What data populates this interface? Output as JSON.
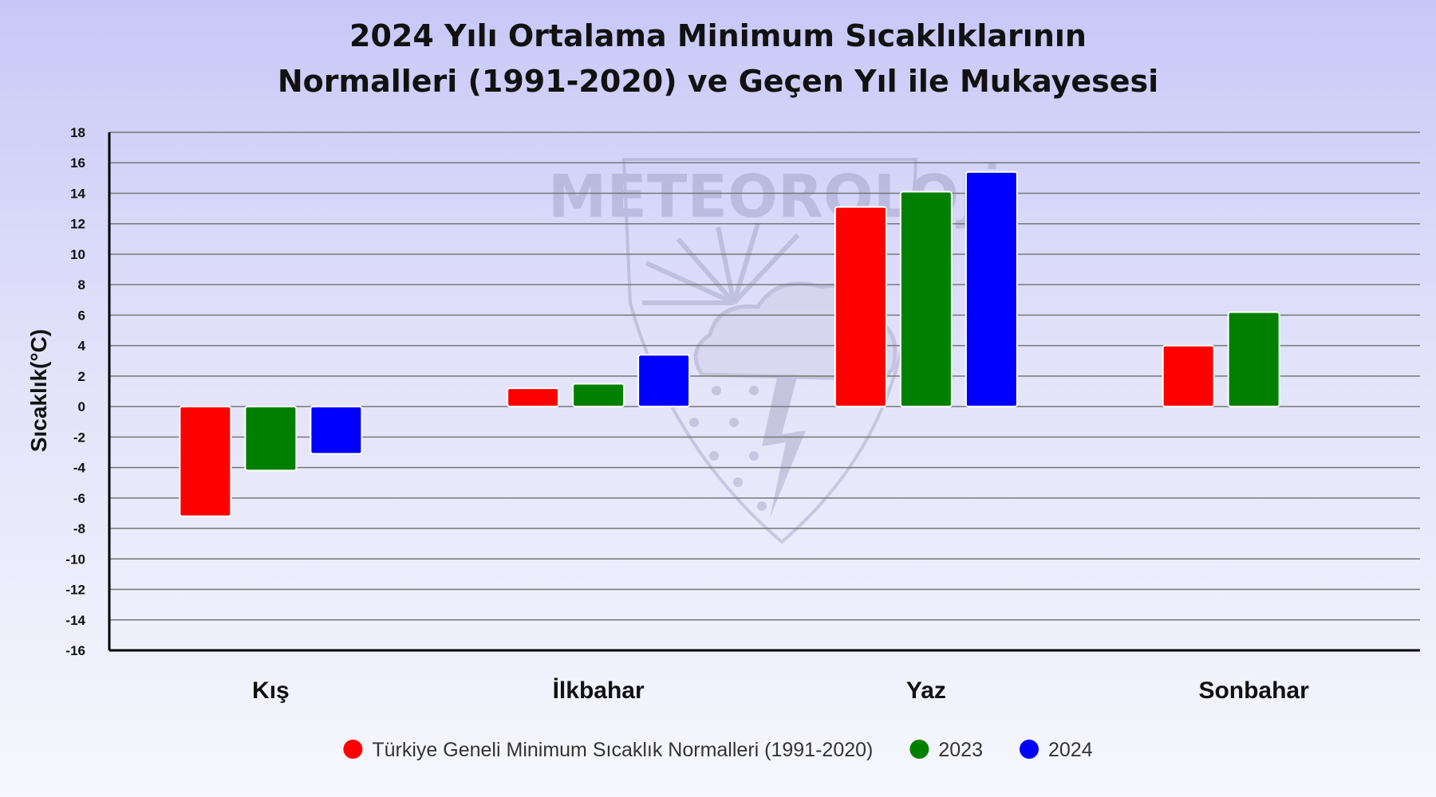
{
  "chart_data": {
    "type": "bar",
    "title_lines": [
      "2024 Yılı Ortalama Minimum Sıcaklıklarının",
      "Normalleri (1991-2020) ve Geçen Yıl ile Mukayesesi"
    ],
    "ylabel": "Sıcaklık(°C)",
    "xlabel": "",
    "ylim": [
      -16,
      18
    ],
    "yticks": [
      18,
      16,
      14,
      12,
      10,
      8,
      6,
      4,
      2,
      0,
      -2,
      -4,
      -6,
      -8,
      -10,
      -12,
      -14,
      -16
    ],
    "categories": [
      "Kış",
      "İlkbahar",
      "Yaz",
      "Sonbahar"
    ],
    "series": [
      {
        "name": "Türkiye Geneli Minimum Sıcaklık Normalleri (1991-2020)",
        "color": "#ff0000",
        "values": [
          -7.2,
          1.2,
          13.1,
          4.0
        ]
      },
      {
        "name": "2023",
        "color": "#008000",
        "values": [
          -4.2,
          1.5,
          14.1,
          6.2
        ]
      },
      {
        "name": "2024",
        "color": "#0000ff",
        "values": [
          -3.1,
          3.4,
          15.4,
          null
        ]
      }
    ],
    "grid": true,
    "legend_position": "bottom"
  },
  "watermark": {
    "text": "METEOROLOJİ"
  }
}
